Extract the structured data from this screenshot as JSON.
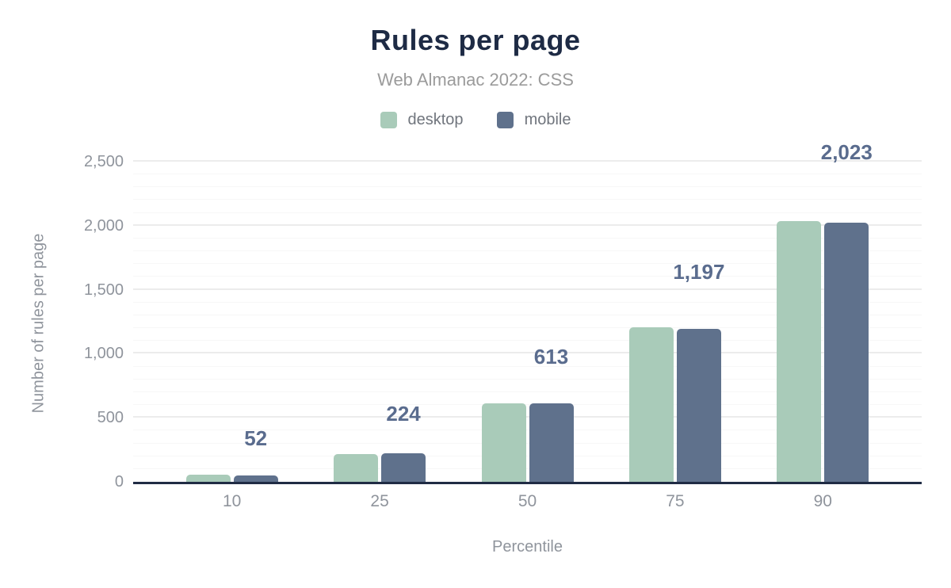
{
  "header": {
    "title": "Rules per page",
    "subtitle": "Web Almanac 2022: CSS"
  },
  "legend": {
    "items": [
      {
        "label": "desktop",
        "color": "#a9cbb9"
      },
      {
        "label": "mobile",
        "color": "#5f718c"
      }
    ]
  },
  "axes": {
    "y_title": "Number of rules per page",
    "x_title": "Percentile",
    "y_ticks": [
      "0",
      "500",
      "1,000",
      "1,500",
      "2,000",
      "2,500"
    ],
    "x_ticks": [
      "10",
      "25",
      "50",
      "75",
      "90"
    ]
  },
  "colors": {
    "title": "#1e2b45",
    "subtitle": "#9b9b9b",
    "axis_text": "#8f949c",
    "legend_text": "#70757d",
    "data_label": "#5a6c8e",
    "axis_line": "#202c44",
    "grid_major": "#ececec",
    "grid_minor": "#f7f7f7",
    "desktop_bar": "#a9cbb9",
    "mobile_bar": "#5f718c"
  },
  "chart_data": {
    "type": "bar",
    "title": "Rules per page",
    "subtitle": "Web Almanac 2022: CSS",
    "xlabel": "Percentile",
    "ylabel": "Number of rules per page",
    "categories": [
      "10",
      "25",
      "50",
      "75",
      "90"
    ],
    "series": [
      {
        "name": "desktop",
        "color": "#a9cbb9",
        "values": [
          55,
          218,
          610,
          1205,
          2035
        ]
      },
      {
        "name": "mobile",
        "color": "#5f718c",
        "values": [
          52,
          224,
          613,
          1197,
          2023
        ]
      }
    ],
    "data_labels": {
      "labelled_series": "mobile",
      "values": [
        "52",
        "224",
        "613",
        "1,197",
        "2,023"
      ],
      "color": "#5a6c8e"
    },
    "ylim": [
      0,
      2500
    ],
    "y_major_step": 500,
    "y_minor_step": 100,
    "grid": true,
    "legend_position": "top",
    "bar_corner_radius": 5
  }
}
